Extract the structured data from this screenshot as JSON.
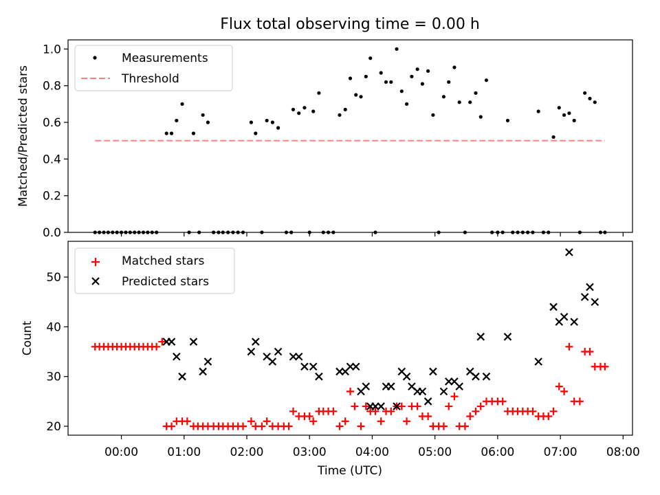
{
  "chart_data": [
    {
      "type": "scatter",
      "title": "Flux total observing time = 0.00 h",
      "xlabel": "",
      "ylabel": "Matched/Predicted stars",
      "xlim": [
        -0.85,
        8.15
      ],
      "ylim": [
        0,
        1.05
      ],
      "yticks": [
        "0.0",
        "0.2",
        "0.4",
        "0.6",
        "0.8",
        "1.0"
      ],
      "ytick_values": [
        0,
        0.2,
        0.4,
        0.6,
        0.8,
        1.0
      ],
      "legend_position": "upper-left",
      "series": [
        {
          "name": "Measurements",
          "marker": "dot",
          "color": "#000000",
          "points": [
            [
              -0.42,
              0
            ],
            [
              -0.35,
              0
            ],
            [
              -0.28,
              0
            ],
            [
              -0.21,
              0
            ],
            [
              -0.14,
              0
            ],
            [
              -0.07,
              0
            ],
            [
              0.0,
              0
            ],
            [
              0.07,
              0
            ],
            [
              0.14,
              0
            ],
            [
              0.21,
              0
            ],
            [
              0.28,
              0
            ],
            [
              0.35,
              0
            ],
            [
              0.42,
              0
            ],
            [
              0.49,
              0
            ],
            [
              0.56,
              0
            ],
            [
              0.72,
              0.54
            ],
            [
              0.8,
              0.54
            ],
            [
              0.88,
              0.61
            ],
            [
              0.97,
              0.7
            ],
            [
              1.15,
              0.54
            ],
            [
              1.38,
              0.6
            ],
            [
              1.3,
              0.64
            ],
            [
              1.08,
              0
            ],
            [
              1.24,
              0
            ],
            [
              1.47,
              0
            ],
            [
              1.55,
              0
            ],
            [
              1.62,
              0
            ],
            [
              1.7,
              0
            ],
            [
              1.78,
              0
            ],
            [
              1.86,
              0
            ],
            [
              1.94,
              0
            ],
            [
              2.24,
              0
            ],
            [
              2.07,
              0.6
            ],
            [
              2.14,
              0.54
            ],
            [
              2.32,
              0.61
            ],
            [
              2.41,
              0.6
            ],
            [
              2.5,
              0.57
            ],
            [
              2.74,
              0.67
            ],
            [
              2.83,
              0.65
            ],
            [
              2.92,
              0.68
            ],
            [
              3.06,
              0.66
            ],
            [
              3.15,
              0.76
            ],
            [
              2.63,
              0
            ],
            [
              2.71,
              0
            ],
            [
              3.0,
              0
            ],
            [
              3.22,
              0
            ],
            [
              3.3,
              0
            ],
            [
              3.38,
              0
            ],
            [
              3.48,
              0.64
            ],
            [
              3.57,
              0.67
            ],
            [
              3.65,
              0.84
            ],
            [
              3.74,
              0.75
            ],
            [
              3.82,
              0.74
            ],
            [
              3.9,
              0.85
            ],
            [
              3.97,
              0.95
            ],
            [
              4.05,
              0
            ],
            [
              4.14,
              0.87
            ],
            [
              4.22,
              0.82
            ],
            [
              4.3,
              0.82
            ],
            [
              4.39,
              1.0
            ],
            [
              4.47,
              0.77
            ],
            [
              4.55,
              0.7
            ],
            [
              4.63,
              0.85
            ],
            [
              4.72,
              0.89
            ],
            [
              4.8,
              0.81
            ],
            [
              4.89,
              0.88
            ],
            [
              4.97,
              0.64
            ],
            [
              5.06,
              0
            ],
            [
              5.14,
              0.74
            ],
            [
              5.22,
              0.82
            ],
            [
              5.31,
              0.9
            ],
            [
              5.39,
              0.71
            ],
            [
              5.48,
              0
            ],
            [
              5.56,
              0.71
            ],
            [
              5.65,
              0.76
            ],
            [
              5.73,
              0.63
            ],
            [
              5.82,
              0.83
            ],
            [
              5.91,
              0
            ],
            [
              6.0,
              0
            ],
            [
              6.08,
              0
            ],
            [
              6.16,
              0.61
            ],
            [
              6.24,
              0
            ],
            [
              6.32,
              0
            ],
            [
              6.4,
              0
            ],
            [
              6.48,
              0
            ],
            [
              6.56,
              0
            ],
            [
              6.65,
              0.66
            ],
            [
              6.73,
              0
            ],
            [
              6.81,
              0
            ],
            [
              6.89,
              0.52
            ],
            [
              6.98,
              0.68
            ],
            [
              7.06,
              0.64
            ],
            [
              7.14,
              0.65
            ],
            [
              7.22,
              0.61
            ],
            [
              7.31,
              0
            ],
            [
              7.39,
              0.76
            ],
            [
              7.47,
              0.73
            ],
            [
              7.55,
              0.71
            ],
            [
              7.64,
              0
            ],
            [
              7.71,
              0
            ]
          ]
        },
        {
          "name": "Threshold",
          "marker": "dashed-line",
          "color": "#ff7f7f",
          "points": [
            [
              -0.42,
              0.5
            ],
            [
              7.71,
              0.5
            ]
          ]
        }
      ]
    },
    {
      "type": "scatter",
      "title": "",
      "xlabel": "Time (UTC)",
      "ylabel": "Count",
      "xlim": [
        -0.85,
        8.15
      ],
      "ylim": [
        18.2,
        57.2
      ],
      "yticks": [
        "20",
        "30",
        "40",
        "50"
      ],
      "ytick_values": [
        20,
        30,
        40,
        50
      ],
      "xticks": [
        "00:00",
        "01:00",
        "02:00",
        "03:00",
        "04:00",
        "05:00",
        "06:00",
        "07:00",
        "08:00"
      ],
      "xtick_values": [
        0,
        1,
        2,
        3,
        4,
        5,
        6,
        7,
        8
      ],
      "legend_position": "upper-left",
      "series": [
        {
          "name": "Matched stars",
          "marker": "plus",
          "color": "#ff0000",
          "points": [
            [
              -0.42,
              36
            ],
            [
              -0.35,
              36
            ],
            [
              -0.28,
              36
            ],
            [
              -0.21,
              36
            ],
            [
              -0.14,
              36
            ],
            [
              -0.07,
              36
            ],
            [
              0.0,
              36
            ],
            [
              0.07,
              36
            ],
            [
              0.14,
              36
            ],
            [
              0.21,
              36
            ],
            [
              0.28,
              36
            ],
            [
              0.35,
              36
            ],
            [
              0.42,
              36
            ],
            [
              0.49,
              36
            ],
            [
              0.56,
              36
            ],
            [
              0.65,
              37
            ],
            [
              0.72,
              20
            ],
            [
              0.8,
              20
            ],
            [
              0.88,
              21
            ],
            [
              0.97,
              21
            ],
            [
              1.05,
              21
            ],
            [
              1.15,
              20
            ],
            [
              1.22,
              20
            ],
            [
              1.3,
              20
            ],
            [
              1.38,
              20
            ],
            [
              1.47,
              20
            ],
            [
              1.55,
              20
            ],
            [
              1.62,
              20
            ],
            [
              1.7,
              20
            ],
            [
              1.78,
              20
            ],
            [
              1.86,
              20
            ],
            [
              1.94,
              20
            ],
            [
              2.07,
              21
            ],
            [
              2.14,
              20
            ],
            [
              2.24,
              20
            ],
            [
              2.32,
              21
            ],
            [
              2.41,
              20
            ],
            [
              2.5,
              20
            ],
            [
              2.59,
              20
            ],
            [
              2.67,
              20
            ],
            [
              2.74,
              23
            ],
            [
              2.83,
              22
            ],
            [
              2.92,
              22
            ],
            [
              3.0,
              22
            ],
            [
              3.06,
              21
            ],
            [
              3.15,
              23
            ],
            [
              3.22,
              23
            ],
            [
              3.3,
              23
            ],
            [
              3.38,
              23
            ],
            [
              3.48,
              20
            ],
            [
              3.57,
              21
            ],
            [
              3.65,
              27
            ],
            [
              3.72,
              24
            ],
            [
              3.82,
              20
            ],
            [
              3.9,
              24
            ],
            [
              3.97,
              23
            ],
            [
              4.05,
              23
            ],
            [
              4.14,
              21
            ],
            [
              4.22,
              23
            ],
            [
              4.3,
              23
            ],
            [
              4.39,
              24
            ],
            [
              4.47,
              24
            ],
            [
              4.55,
              21
            ],
            [
              4.63,
              24
            ],
            [
              4.72,
              24
            ],
            [
              4.8,
              22
            ],
            [
              4.89,
              22
            ],
            [
              4.97,
              20
            ],
            [
              5.06,
              20
            ],
            [
              5.14,
              20
            ],
            [
              5.22,
              24
            ],
            [
              5.31,
              26
            ],
            [
              5.39,
              20
            ],
            [
              5.48,
              20
            ],
            [
              5.56,
              22
            ],
            [
              5.65,
              23
            ],
            [
              5.73,
              24
            ],
            [
              5.82,
              25
            ],
            [
              5.91,
              25
            ],
            [
              6.0,
              25
            ],
            [
              6.08,
              25
            ],
            [
              6.16,
              23
            ],
            [
              6.24,
              23
            ],
            [
              6.32,
              23
            ],
            [
              6.4,
              23
            ],
            [
              6.48,
              23
            ],
            [
              6.56,
              23
            ],
            [
              6.65,
              22
            ],
            [
              6.73,
              22
            ],
            [
              6.81,
              22
            ],
            [
              6.89,
              23
            ],
            [
              6.98,
              28
            ],
            [
              7.06,
              27
            ],
            [
              7.14,
              36
            ],
            [
              7.22,
              25
            ],
            [
              7.31,
              25
            ],
            [
              7.39,
              35
            ],
            [
              7.47,
              35
            ],
            [
              7.55,
              32
            ],
            [
              7.64,
              32
            ],
            [
              7.71,
              32
            ]
          ]
        },
        {
          "name": "Predicted stars",
          "marker": "x",
          "color": "#000000",
          "points": [
            [
              0.72,
              37
            ],
            [
              0.8,
              37
            ],
            [
              0.88,
              34
            ],
            [
              0.97,
              30
            ],
            [
              1.15,
              37
            ],
            [
              1.3,
              31
            ],
            [
              1.38,
              33
            ],
            [
              2.07,
              35
            ],
            [
              2.14,
              37
            ],
            [
              2.32,
              34
            ],
            [
              2.41,
              33
            ],
            [
              2.5,
              35
            ],
            [
              2.74,
              34
            ],
            [
              2.83,
              34
            ],
            [
              2.92,
              32
            ],
            [
              3.06,
              32
            ],
            [
              3.15,
              30
            ],
            [
              3.48,
              31
            ],
            [
              3.57,
              31
            ],
            [
              3.65,
              32
            ],
            [
              3.74,
              32
            ],
            [
              3.82,
              27
            ],
            [
              3.9,
              28
            ],
            [
              3.97,
              24
            ],
            [
              4.05,
              24
            ],
            [
              4.14,
              24
            ],
            [
              4.22,
              28
            ],
            [
              4.3,
              28
            ],
            [
              4.39,
              24
            ],
            [
              4.47,
              31
            ],
            [
              4.55,
              30
            ],
            [
              4.63,
              28
            ],
            [
              4.72,
              27
            ],
            [
              4.8,
              27
            ],
            [
              4.89,
              25
            ],
            [
              4.97,
              31
            ],
            [
              5.14,
              27
            ],
            [
              5.22,
              29
            ],
            [
              5.31,
              29
            ],
            [
              5.39,
              28
            ],
            [
              5.56,
              31
            ],
            [
              5.65,
              30
            ],
            [
              5.73,
              38
            ],
            [
              5.82,
              30
            ],
            [
              6.16,
              38
            ],
            [
              6.65,
              33
            ],
            [
              6.89,
              44
            ],
            [
              6.98,
              41
            ],
            [
              7.06,
              42
            ],
            [
              7.14,
              55
            ],
            [
              7.22,
              41
            ],
            [
              7.39,
              46
            ],
            [
              7.47,
              48
            ],
            [
              7.55,
              45
            ]
          ]
        }
      ]
    }
  ]
}
